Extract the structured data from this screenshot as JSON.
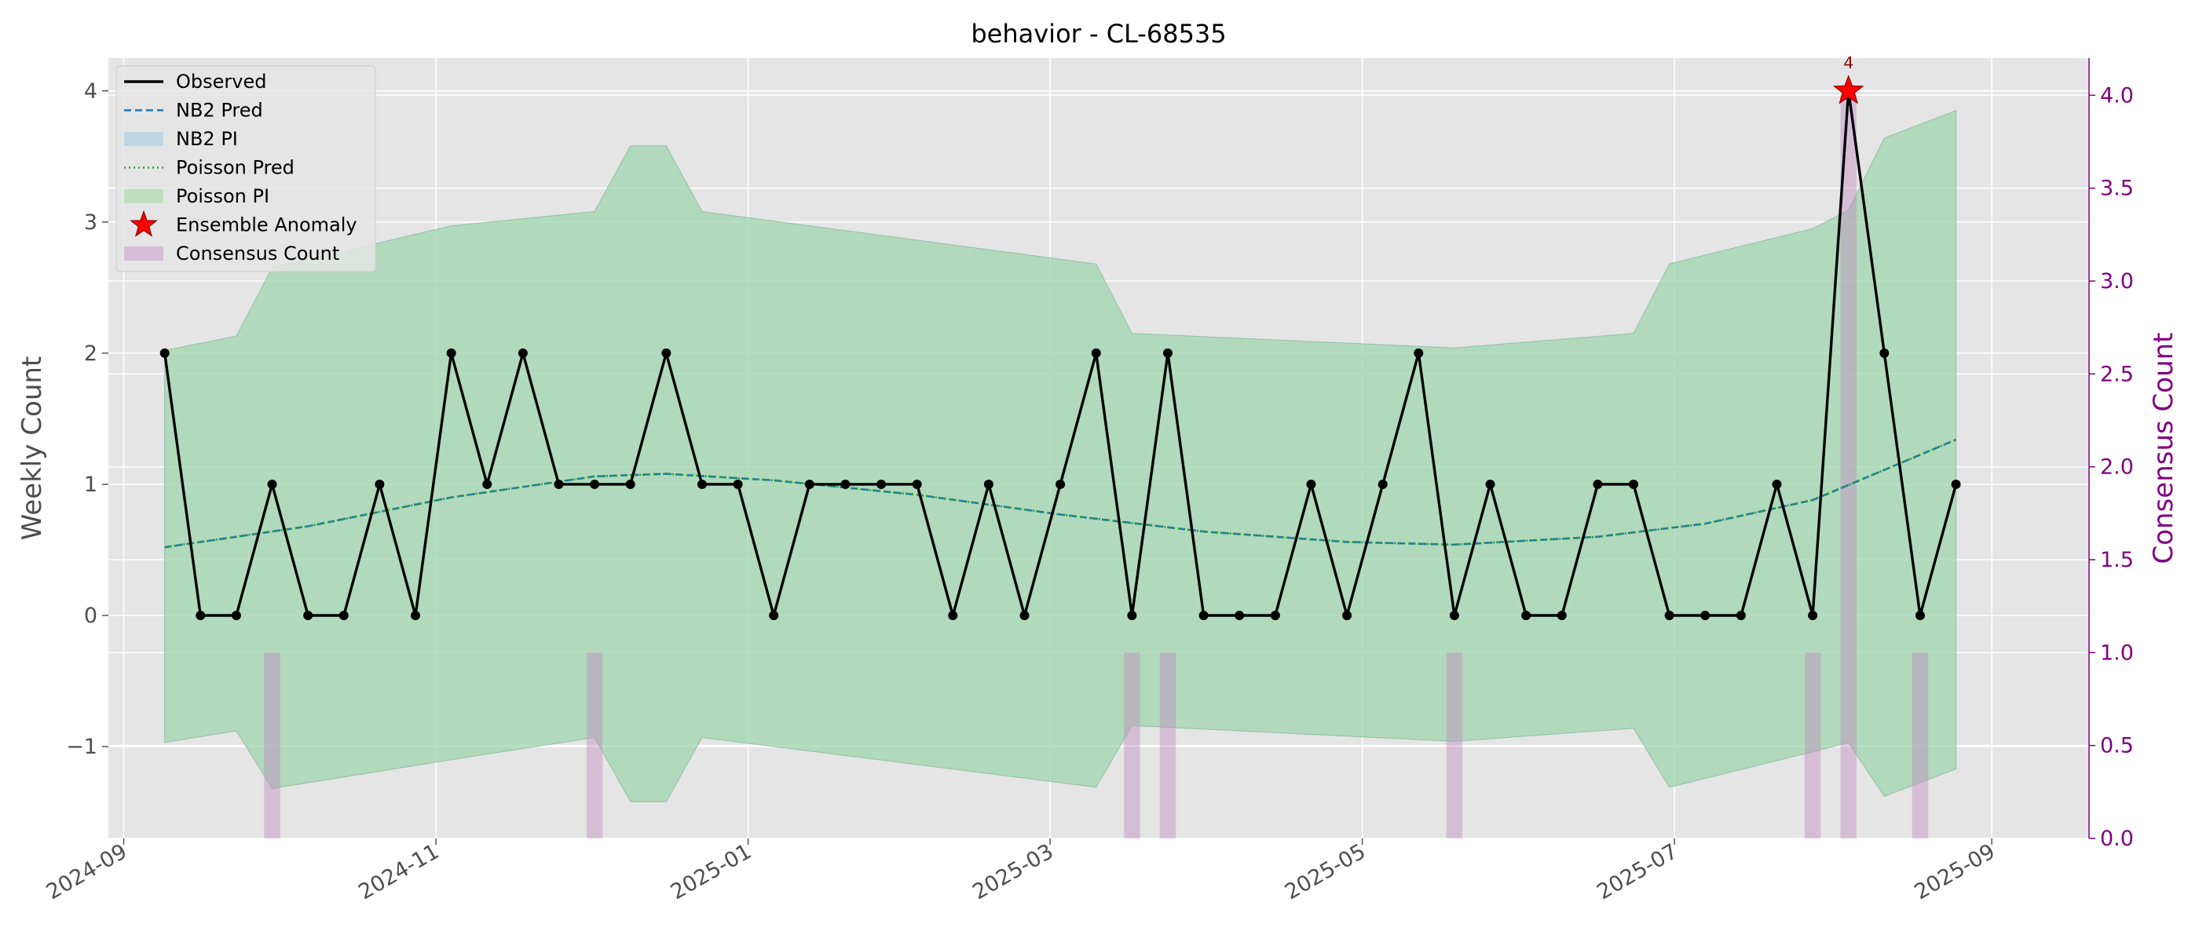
{
  "chart_data": {
    "type": "line",
    "title": "behavior - CL-68535",
    "ylabel": "Weekly Count",
    "y2label": "Consensus Count",
    "xlim": [
      "2024-08-29",
      "2025-09-20"
    ],
    "ylim": [
      -1.7,
      4.25
    ],
    "y2lim": [
      0.0,
      4.2
    ],
    "x_ticks": [
      "2024-09",
      "2024-11",
      "2025-01",
      "2025-03",
      "2025-05",
      "2025-07",
      "2025-09"
    ],
    "y_ticks": [
      "−1",
      "0",
      "1",
      "2",
      "3",
      "4"
    ],
    "y2_ticks": [
      "0.0",
      "0.5",
      "1.0",
      "1.5",
      "2.0",
      "2.5",
      "3.0",
      "3.5",
      "4.0"
    ],
    "grid": true,
    "legend_position": "upper left",
    "legend": [
      "Observed",
      "NB2 Pred",
      "NB2 PI",
      "Poisson Pred",
      "Poisson PI",
      "Ensemble Anomaly",
      "Consensus Count"
    ],
    "colors": {
      "observed": "#000000",
      "nb2_pred": "#1f77b4",
      "poisson_pred": "#2ca02c",
      "pi_fill": "#9cc9bc",
      "anomaly": "#ff0000",
      "consensus": "#c08fc0",
      "right_axis": "#800080",
      "plot_bg": "#e5e5e5"
    },
    "series": [
      {
        "name": "Observed",
        "x": [
          "2024-09-09",
          "2024-09-16",
          "2024-09-23",
          "2024-09-30",
          "2024-10-07",
          "2024-10-14",
          "2024-10-21",
          "2024-10-28",
          "2024-11-04",
          "2024-11-11",
          "2024-11-18",
          "2024-11-25",
          "2024-12-02",
          "2024-12-09",
          "2024-12-16",
          "2024-12-23",
          "2024-12-30",
          "2025-01-06",
          "2025-01-13",
          "2025-01-20",
          "2025-01-27",
          "2025-02-03",
          "2025-02-10",
          "2025-02-17",
          "2025-02-24",
          "2025-03-03",
          "2025-03-10",
          "2025-03-17",
          "2025-03-24",
          "2025-03-31",
          "2025-04-07",
          "2025-04-14",
          "2025-04-21",
          "2025-04-28",
          "2025-05-05",
          "2025-05-12",
          "2025-05-19",
          "2025-05-26",
          "2025-06-02",
          "2025-06-09",
          "2025-06-16",
          "2025-06-23",
          "2025-06-30",
          "2025-07-07",
          "2025-07-14",
          "2025-07-21",
          "2025-07-28",
          "2025-08-04",
          "2025-08-11",
          "2025-08-18",
          "2025-08-25"
        ],
        "values": [
          2,
          0,
          0,
          1,
          0,
          0,
          1,
          0,
          2,
          1,
          2,
          1,
          1,
          1,
          2,
          1,
          1,
          0,
          1,
          1,
          1,
          1,
          0,
          1,
          0,
          1,
          2,
          0,
          2,
          0,
          0,
          0,
          1,
          0,
          1,
          2,
          0,
          1,
          0,
          0,
          1,
          1,
          0,
          0,
          0,
          1,
          0,
          4,
          2,
          0,
          1
        ]
      },
      {
        "name": "NB2 Pred",
        "x": [
          "2024-09-09",
          "2024-10-07",
          "2024-11-04",
          "2024-12-02",
          "2024-12-16",
          "2025-01-06",
          "2025-02-03",
          "2025-03-03",
          "2025-03-31",
          "2025-04-28",
          "2025-05-19",
          "2025-06-16",
          "2025-07-07",
          "2025-07-28",
          "2025-08-25"
        ],
        "values": [
          0.52,
          0.68,
          0.9,
          1.06,
          1.08,
          1.03,
          0.92,
          0.77,
          0.64,
          0.56,
          0.54,
          0.6,
          0.7,
          0.88,
          1.34
        ]
      },
      {
        "name": "Poisson Pred",
        "x": [
          "2024-09-09",
          "2024-10-07",
          "2024-11-04",
          "2024-12-02",
          "2024-12-16",
          "2025-01-06",
          "2025-02-03",
          "2025-03-03",
          "2025-03-31",
          "2025-04-28",
          "2025-05-19",
          "2025-06-16",
          "2025-07-07",
          "2025-07-28",
          "2025-08-25"
        ],
        "values": [
          0.52,
          0.68,
          0.9,
          1.06,
          1.08,
          1.03,
          0.92,
          0.77,
          0.64,
          0.56,
          0.54,
          0.6,
          0.7,
          0.88,
          1.34
        ]
      },
      {
        "name": "NB2 PI",
        "x": [
          "2024-09-09",
          "2024-09-23",
          "2024-09-30",
          "2024-11-04",
          "2024-12-02",
          "2024-12-09",
          "2024-12-16",
          "2024-12-23",
          "2025-03-10",
          "2025-03-17",
          "2025-05-19",
          "2025-06-23",
          "2025-06-30",
          "2025-07-28",
          "2025-08-04",
          "2025-08-11",
          "2025-08-25"
        ],
        "upper": [
          2.02,
          2.13,
          2.65,
          2.97,
          3.08,
          3.58,
          3.58,
          3.08,
          2.68,
          2.15,
          2.04,
          2.15,
          2.68,
          2.95,
          3.09,
          3.64,
          3.85
        ],
        "lower": [
          -0.97,
          -0.88,
          -1.32,
          -1.1,
          -0.93,
          -1.42,
          -1.42,
          -0.93,
          -1.31,
          -0.84,
          -0.96,
          -0.86,
          -1.31,
          -1.04,
          -0.97,
          -1.38,
          -1.17
        ]
      },
      {
        "name": "Poisson PI",
        "x": [
          "2024-09-09",
          "2024-09-23",
          "2024-09-30",
          "2024-11-04",
          "2024-12-02",
          "2024-12-09",
          "2024-12-16",
          "2024-12-23",
          "2025-03-10",
          "2025-03-17",
          "2025-05-19",
          "2025-06-23",
          "2025-06-30",
          "2025-07-28",
          "2025-08-04",
          "2025-08-11",
          "2025-08-25"
        ],
        "upper": [
          2.02,
          2.13,
          2.65,
          2.97,
          3.08,
          3.58,
          3.58,
          3.08,
          2.68,
          2.15,
          2.04,
          2.15,
          2.68,
          2.95,
          3.09,
          3.64,
          3.85
        ],
        "lower": [
          -0.97,
          -0.88,
          -1.32,
          -1.1,
          -0.93,
          -1.42,
          -1.42,
          -0.93,
          -1.31,
          -0.84,
          -0.96,
          -0.86,
          -1.31,
          -1.04,
          -0.97,
          -1.38,
          -1.17
        ]
      },
      {
        "name": "Ensemble Anomaly",
        "x": [
          "2025-08-04"
        ],
        "values": [
          4
        ],
        "annotations": [
          "4"
        ]
      },
      {
        "name": "Consensus Count",
        "axis": "right",
        "x": [
          "2024-09-30",
          "2024-12-02",
          "2025-03-17",
          "2025-03-24",
          "2025-05-19",
          "2025-07-28",
          "2025-08-04",
          "2025-08-18"
        ],
        "values": [
          1,
          1,
          1,
          1,
          1,
          1,
          4,
          1
        ]
      }
    ]
  }
}
